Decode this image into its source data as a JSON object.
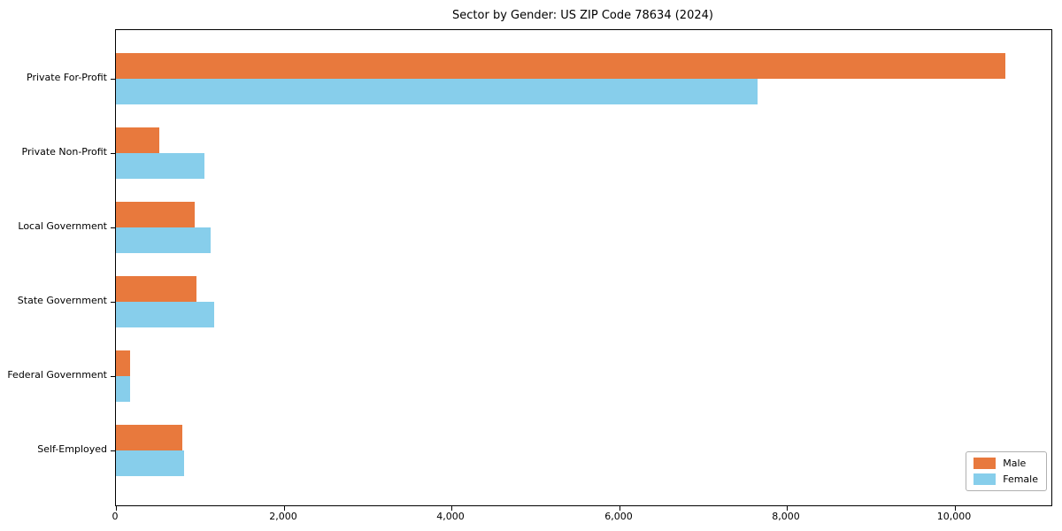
{
  "chart_data": {
    "type": "bar",
    "orientation": "horizontal",
    "title": "Sector by Gender: US ZIP Code 78634 (2024)",
    "categories": [
      "Private For-Profit",
      "Private Non-Profit",
      "Local Government",
      "State Government",
      "Federal Government",
      "Self-Employed"
    ],
    "series": [
      {
        "name": "Male",
        "color": "#E8793D",
        "values": [
          10600,
          515,
          935,
          955,
          165,
          790
        ]
      },
      {
        "name": "Female",
        "color": "#87CEEB",
        "values": [
          7650,
          1050,
          1130,
          1170,
          170,
          815
        ]
      }
    ],
    "xlim": [
      0,
      11150
    ],
    "x_ticks": [
      0,
      2000,
      4000,
      6000,
      8000,
      10000
    ],
    "x_tick_labels": [
      "0",
      "2,000",
      "4,000",
      "6,000",
      "8,000",
      "10,000"
    ],
    "xlabel": "",
    "ylabel": "",
    "grid": false,
    "legend_position": "lower right",
    "background_color": "#FFFFFF",
    "axis_color": "#000000"
  }
}
